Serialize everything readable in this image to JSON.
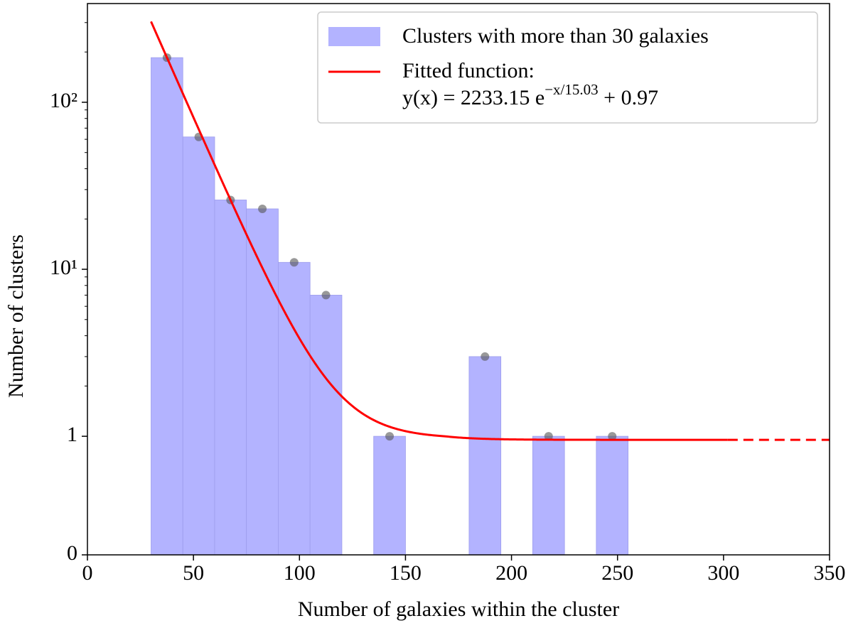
{
  "chart_data": {
    "type": "histogram",
    "xlabel": "Number of galaxies within the cluster",
    "ylabel": "Number of clusters",
    "name": "Clusters with more than 30 galaxies",
    "bins": [
      30,
      45,
      60,
      75,
      90,
      105,
      120,
      135,
      150,
      165,
      180,
      195,
      210,
      225,
      240,
      255
    ],
    "counts": [
      185,
      62,
      26,
      23,
      11,
      7,
      0,
      1,
      0,
      0,
      3,
      0,
      1,
      0,
      1
    ],
    "color": "#b3b3ff",
    "marker_color": "#555555",
    "fit": {
      "name": "Fitted function:",
      "equation_prefix": "y(x) = 2233.15 e",
      "equation_exponent": "−x/15.03",
      "equation_suffix": " + 0.97",
      "a": 2233.15,
      "scale": 15.03,
      "c": 0.97,
      "color": "#ff0000",
      "solid_range": [
        30,
        302
      ],
      "dashed_range": [
        302,
        350
      ]
    },
    "xlim": [
      0,
      350
    ],
    "xticks": [
      0,
      50,
      100,
      150,
      200,
      250,
      300,
      350
    ],
    "ylim": [
      0,
      390
    ],
    "yticks": [
      0,
      1,
      {
        "value": 10,
        "label": "10¹"
      },
      {
        "value": 100,
        "label": "10²"
      }
    ],
    "yscale": "symlog",
    "legend": "upper right"
  }
}
